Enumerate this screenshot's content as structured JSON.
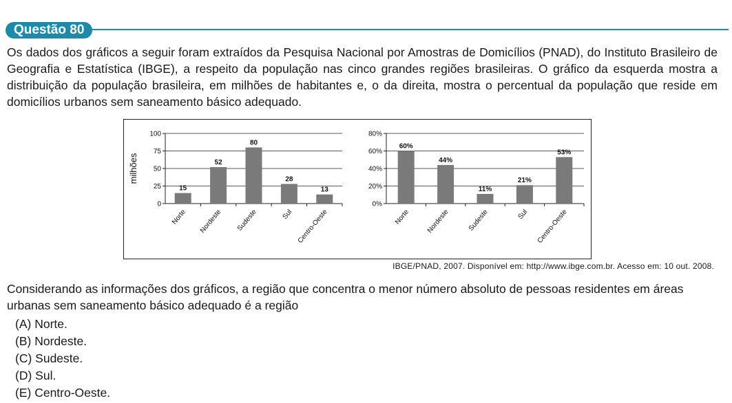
{
  "header": {
    "badge": "Questão 80",
    "accent_color": "#1f8aa8"
  },
  "intro_text": "Os dados dos gráficos a seguir foram extraídos da Pesquisa Nacional por Amostras de Domicílios (PNAD), do Instituto Brasileiro de Geografia e Estatística (IBGE), a respeito da população nas cinco grandes regiões brasileiras. O gráfico da esquerda mostra a distribuição da população brasileira, em milhões de habitantes e, o da direita, mostra o percentual da população que reside em domicílios urbanos sem saneamento básico adequado.",
  "chart_data": [
    {
      "type": "bar",
      "categories": [
        "Norte",
        "Nordeste",
        "Sudeste",
        "Sul",
        "Centro-Oeste"
      ],
      "values": [
        15,
        52,
        80,
        28,
        13
      ],
      "data_labels": [
        "15",
        "52",
        "80",
        "28",
        "13"
      ],
      "title": "",
      "xlabel": "",
      "ylabel": "milhões",
      "ylim": [
        0,
        100
      ],
      "ytick_labels": [
        "0",
        "25",
        "50",
        "75",
        "100"
      ],
      "yticks": [
        0,
        25,
        50,
        75,
        100
      ],
      "grid": true,
      "bar_color": "#7a7a7a"
    },
    {
      "type": "bar",
      "categories": [
        "Norte",
        "Nordeste",
        "Sudeste",
        "Sul",
        "Centro-Oeste"
      ],
      "values": [
        60,
        44,
        11,
        21,
        53
      ],
      "data_labels": [
        "60%",
        "44%",
        "11%",
        "21%",
        "53%"
      ],
      "title": "",
      "xlabel": "",
      "ylabel": "",
      "ylim": [
        0,
        80
      ],
      "ytick_labels": [
        "0%",
        "20%",
        "40%",
        "60%",
        "80%"
      ],
      "yticks": [
        0,
        20,
        40,
        60,
        80
      ],
      "grid": true,
      "bar_color": "#7a7a7a"
    }
  ],
  "source": "IBGE/PNAD, 2007. Disponível em: http://www.ibge.com.br. Acesso em: 10 out. 2008.",
  "question_text": "Considerando as informações dos gráficos, a região que concentra o menor número absoluto de pessoas residentes em áreas urbanas sem saneamento básico adequado é a região",
  "options": [
    {
      "letter": "(A)",
      "text": "Norte."
    },
    {
      "letter": "(B)",
      "text": "Nordeste."
    },
    {
      "letter": "(C)",
      "text": "Sudeste."
    },
    {
      "letter": "(D)",
      "text": "Sul."
    },
    {
      "letter": "(E)",
      "text": "Centro-Oeste."
    }
  ]
}
